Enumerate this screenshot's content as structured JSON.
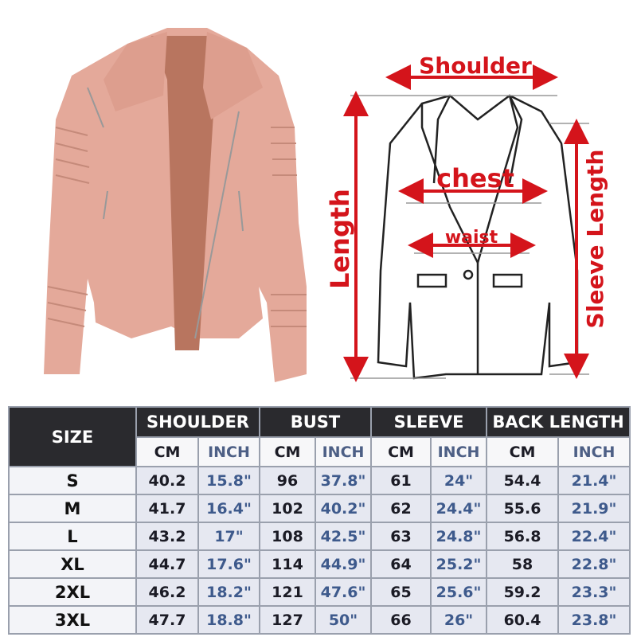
{
  "diagram": {
    "shoulder": "Shoulder",
    "chest": "chest",
    "waist": "waist",
    "length": "Length",
    "sleeve_length": "Sleeve Length"
  },
  "table": {
    "size_header": "SIZE",
    "groups": [
      "SHOULDER",
      "BUST",
      "SLEEVE",
      "BACK LENGTH"
    ],
    "subheaders": [
      "CM",
      "INCH",
      "CM",
      "INCH",
      "CM",
      "INCH",
      "CM",
      "INCH"
    ],
    "rows": [
      [
        "S",
        40.2,
        "15.8\"",
        96,
        "37.8\"",
        61,
        "24\"",
        54.4,
        "21.4\""
      ],
      [
        "M",
        41.7,
        "16.4\"",
        102,
        "40.2\"",
        62,
        "24.4\"",
        55.6,
        "21.9\""
      ],
      [
        "L",
        43.2,
        "17\"",
        108,
        "42.5\"",
        63,
        "24.8\"",
        56.8,
        "22.4\""
      ],
      [
        "XL",
        44.7,
        "17.6\"",
        114,
        "44.9\"",
        64,
        "25.2\"",
        58,
        "22.8\""
      ],
      [
        "2XL",
        46.2,
        "18.2\"",
        121,
        "47.6\"",
        65,
        "25.6\"",
        59.2,
        "23.3\""
      ],
      [
        "3XL",
        47.7,
        "18.8\"",
        127,
        "50\"",
        66,
        "26\"",
        60.4,
        "23.8\""
      ]
    ]
  }
}
